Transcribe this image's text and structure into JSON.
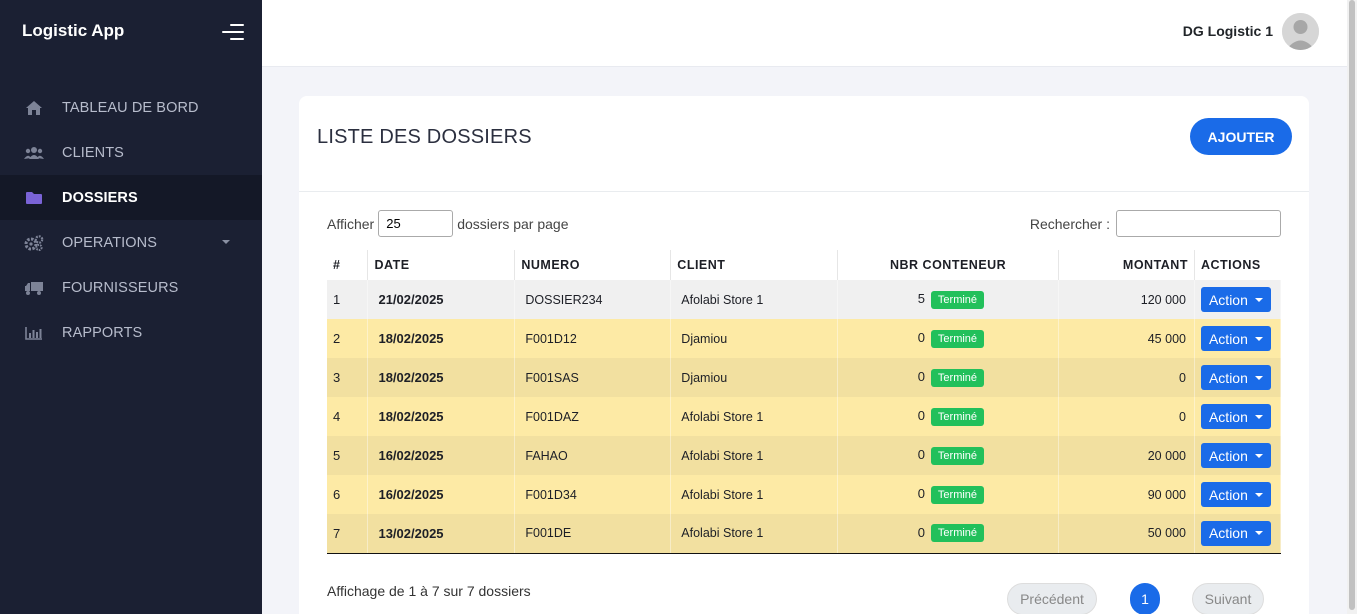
{
  "app": {
    "title": "Logistic App"
  },
  "sidebar": {
    "items": [
      {
        "label": "TABLEAU DE BORD",
        "icon": "home-icon"
      },
      {
        "label": "CLIENTS",
        "icon": "users-icon"
      },
      {
        "label": "DOSSIERS",
        "icon": "folder-icon",
        "active": true
      },
      {
        "label": "OPERATIONS",
        "icon": "cogs-icon",
        "has_submenu": true
      },
      {
        "label": "FOURNISSEURS",
        "icon": "truck-icon"
      },
      {
        "label": "RAPPORTS",
        "icon": "chart-icon"
      }
    ]
  },
  "topbar": {
    "user_name": "DG Logistic 1"
  },
  "card": {
    "title": "LISTE DES DOSSIERS",
    "add_label": "AJOUTER"
  },
  "controls": {
    "show_prefix": "Afficher",
    "page_length": "25",
    "show_suffix": "dossiers par page",
    "search_label": "Rechercher :",
    "search_value": ""
  },
  "table": {
    "headers": {
      "num": "#",
      "date": "DATE",
      "numero": "NUMERO",
      "client": "CLIENT",
      "nbr": "NBR CONTENEUR",
      "montant": "MONTANT",
      "actions": "ACTIONS"
    },
    "rows": [
      {
        "num": "1",
        "date": "21/02/2025",
        "numero": "DOSSIER234",
        "client": "Afolabi Store 1",
        "nbr": "5",
        "status": "Terminé",
        "montant": "120 000",
        "action": "Action"
      },
      {
        "num": "2",
        "date": "18/02/2025",
        "numero": "F001D12",
        "client": "Djamiou",
        "nbr": "0",
        "status": "Terminé",
        "montant": "45 000",
        "action": "Action"
      },
      {
        "num": "3",
        "date": "18/02/2025",
        "numero": "F001SAS",
        "client": "Djamiou",
        "nbr": "0",
        "status": "Terminé",
        "montant": "0",
        "action": "Action"
      },
      {
        "num": "4",
        "date": "18/02/2025",
        "numero": "F001DAZ",
        "client": "Afolabi Store 1",
        "nbr": "0",
        "status": "Terminé",
        "montant": "0",
        "action": "Action"
      },
      {
        "num": "5",
        "date": "16/02/2025",
        "numero": "FAHAO",
        "client": "Afolabi Store 1",
        "nbr": "0",
        "status": "Terminé",
        "montant": "20 000",
        "action": "Action"
      },
      {
        "num": "6",
        "date": "16/02/2025",
        "numero": "F001D34",
        "client": "Afolabi Store 1",
        "nbr": "0",
        "status": "Terminé",
        "montant": "90 000",
        "action": "Action"
      },
      {
        "num": "7",
        "date": "13/02/2025",
        "numero": "F001DE",
        "client": "Afolabi Store 1",
        "nbr": "0",
        "status": "Terminé",
        "montant": "50 000",
        "action": "Action"
      }
    ]
  },
  "footer": {
    "info": "Affichage de 1 à 7 sur 7 dossiers",
    "prev_label": "Précédent",
    "current_page": "1",
    "next_label": "Suivant"
  },
  "colors": {
    "sidebar_bg": "#1b2033",
    "accent": "#1a6be8",
    "badge_green": "#22c05b",
    "row_yellow": "#fdeaa5"
  }
}
